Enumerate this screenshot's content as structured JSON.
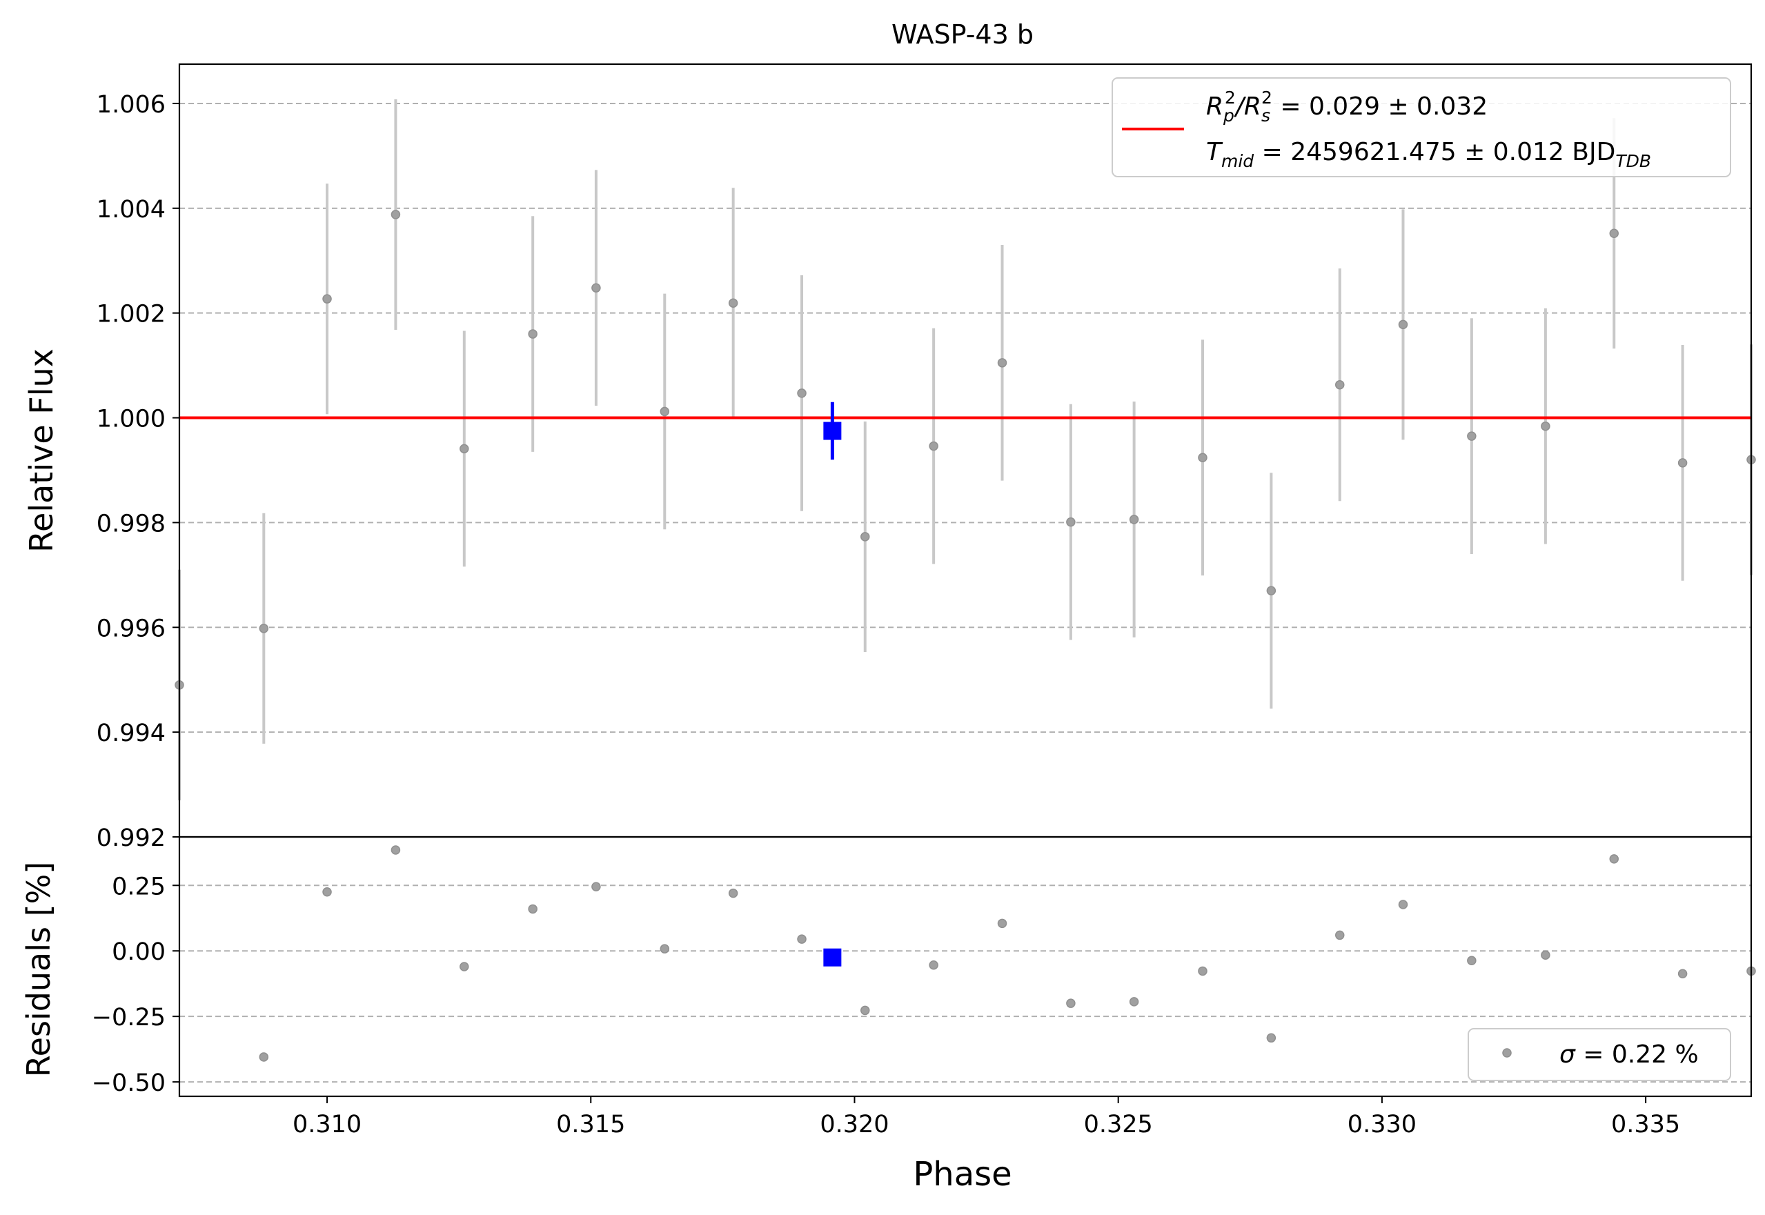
{
  "chart_data": {
    "type": "scatter",
    "title": "WASP-43 b",
    "xlabel": "Phase",
    "xlim": [
      0.3072,
      0.337
    ],
    "x_ticks": [
      "0.310",
      "0.315",
      "0.320",
      "0.325",
      "0.330",
      "0.335"
    ],
    "x_tick_values": [
      0.31,
      0.315,
      0.32,
      0.325,
      0.33,
      0.335
    ],
    "grid": "horizontal dashed",
    "panels": [
      {
        "name": "flux",
        "ylabel": "Relative Flux",
        "ylim": [
          0.992,
          1.00675
        ],
        "y_ticks": [
          "0.992",
          "0.994",
          "0.996",
          "0.998",
          "1.000",
          "1.002",
          "1.004",
          "1.006"
        ],
        "y_tick_values": [
          0.992,
          0.994,
          0.996,
          0.998,
          1.0,
          1.002,
          1.004,
          1.006
        ],
        "model_line": {
          "y": 1.0,
          "color": "#ff0000"
        },
        "legend_position": "top-right",
        "legend": {
          "line1_main": "R",
          "line1_sub1": "p",
          "line1_sup1": "2",
          "line1_slash": "/R",
          "line1_sub2": "s",
          "line1_sup2": "2",
          "line1_rest": " = 0.029 ± 0.032",
          "line2_main": "T",
          "line2_sub": "mid",
          "line2_rest": " = 2459621.475 ± 0.012 BJD",
          "line2_sub2": "TDB"
        },
        "points": {
          "color": "#a0a0a0",
          "x": [
            0.3072,
            0.3088,
            0.31,
            0.3113,
            0.3126,
            0.3139,
            0.3151,
            0.3164,
            0.3177,
            0.319,
            0.3202,
            0.3215,
            0.3228,
            0.3241,
            0.3253,
            0.3266,
            0.3279,
            0.3292,
            0.3304,
            0.3317,
            0.3331,
            0.3344,
            0.3357,
            0.337
          ],
          "y": [
            0.9949,
            0.99598,
            1.00227,
            1.00388,
            0.99941,
            1.0016,
            1.00248,
            1.00012,
            1.00219,
            1.00047,
            0.99773,
            0.99946,
            1.00105,
            0.99801,
            0.99806,
            0.99924,
            0.9967,
            1.00063,
            1.00178,
            0.99965,
            0.99984,
            1.00352,
            0.99914,
            0.9992
          ],
          "yerr": [
            0.0022,
            0.0022,
            0.0022,
            0.0022,
            0.00225,
            0.00225,
            0.00225,
            0.00225,
            0.0022,
            0.00225,
            0.0022,
            0.00225,
            0.00225,
            0.00225,
            0.00225,
            0.00225,
            0.00225,
            0.00222,
            0.0022,
            0.00225,
            0.00225,
            0.0022,
            0.00225,
            0.0022
          ]
        },
        "binned": {
          "color": "#0000ff",
          "x": [
            0.31958
          ],
          "y": [
            0.99975
          ],
          "yerr": [
            0.00055
          ]
        }
      },
      {
        "name": "residuals",
        "ylabel": "Residuals [%]",
        "ylim": [
          -0.555,
          0.435
        ],
        "y_ticks": [
          "−0.50",
          "−0.25",
          "0.00",
          "0.25"
        ],
        "y_tick_values": [
          -0.5,
          -0.25,
          0.0,
          0.25
        ],
        "legend_position": "bottom-right",
        "legend": {
          "sigma_symbol": "σ",
          "sigma_text": " = 0.22 %"
        },
        "points": {
          "color": "#a0a0a0",
          "x": [
            0.3088,
            0.31,
            0.3113,
            0.3126,
            0.3139,
            0.3151,
            0.3164,
            0.3177,
            0.319,
            0.3202,
            0.3215,
            0.3228,
            0.3241,
            0.3253,
            0.3266,
            0.3279,
            0.3292,
            0.3304,
            0.3317,
            0.3331,
            0.3344,
            0.3357,
            0.337
          ],
          "y": [
            -0.405,
            0.225,
            0.385,
            -0.06,
            0.16,
            0.245,
            0.008,
            0.22,
            0.045,
            -0.227,
            -0.054,
            0.105,
            -0.2,
            -0.194,
            -0.077,
            -0.332,
            0.06,
            0.177,
            -0.037,
            -0.016,
            0.351,
            -0.087,
            -0.077
          ]
        },
        "binned": {
          "color": "#0000ff",
          "x": [
            0.31958
          ],
          "y": [
            -0.025
          ]
        }
      }
    ]
  }
}
